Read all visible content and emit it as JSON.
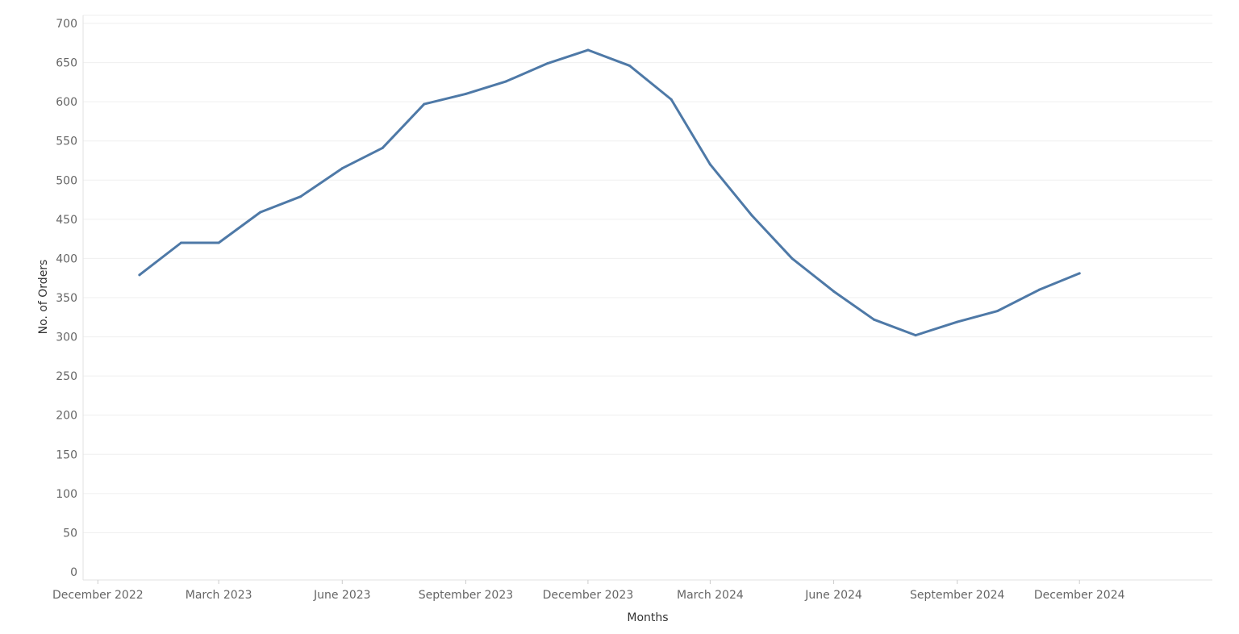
{
  "chart_data": {
    "type": "line",
    "title": "",
    "xlabel": "Months",
    "ylabel": "No. of Orders",
    "ylim": [
      0,
      700
    ],
    "yticks": [
      0,
      50,
      100,
      150,
      200,
      250,
      300,
      350,
      400,
      450,
      500,
      550,
      600,
      650,
      700
    ],
    "xlim": [
      "2022-11-20",
      "2025-03-10"
    ],
    "xticks": [
      {
        "date": "2022-12-01",
        "label": "December 2022"
      },
      {
        "date": "2023-03-01",
        "label": "March 2023"
      },
      {
        "date": "2023-06-01",
        "label": "June 2023"
      },
      {
        "date": "2023-09-01",
        "label": "September 2023"
      },
      {
        "date": "2023-12-01",
        "label": "December 2023"
      },
      {
        "date": "2024-03-01",
        "label": "March 2024"
      },
      {
        "date": "2024-06-01",
        "label": "June 2024"
      },
      {
        "date": "2024-09-01",
        "label": "September 2024"
      },
      {
        "date": "2024-12-01",
        "label": "December 2024"
      }
    ],
    "grid": true,
    "color": "#4e79a7",
    "series": [
      {
        "x": [
          "2023-01-01",
          "2023-02-01",
          "2023-03-01",
          "2023-04-01",
          "2023-05-01",
          "2023-06-01",
          "2023-07-01",
          "2023-08-01",
          "2023-09-01",
          "2023-10-01",
          "2023-11-01",
          "2023-12-01",
          "2024-01-01",
          "2024-02-01",
          "2024-03-01",
          "2024-04-01",
          "2024-05-01",
          "2024-06-01",
          "2024-07-01",
          "2024-08-01",
          "2024-09-01",
          "2024-10-01",
          "2024-11-01",
          "2024-12-01"
        ],
        "values": [
          379,
          420,
          420,
          459,
          479,
          515,
          541,
          597,
          610,
          626,
          649,
          666,
          646,
          603,
          520,
          455,
          400,
          358,
          322,
          302,
          319,
          333,
          360,
          381
        ]
      }
    ]
  }
}
